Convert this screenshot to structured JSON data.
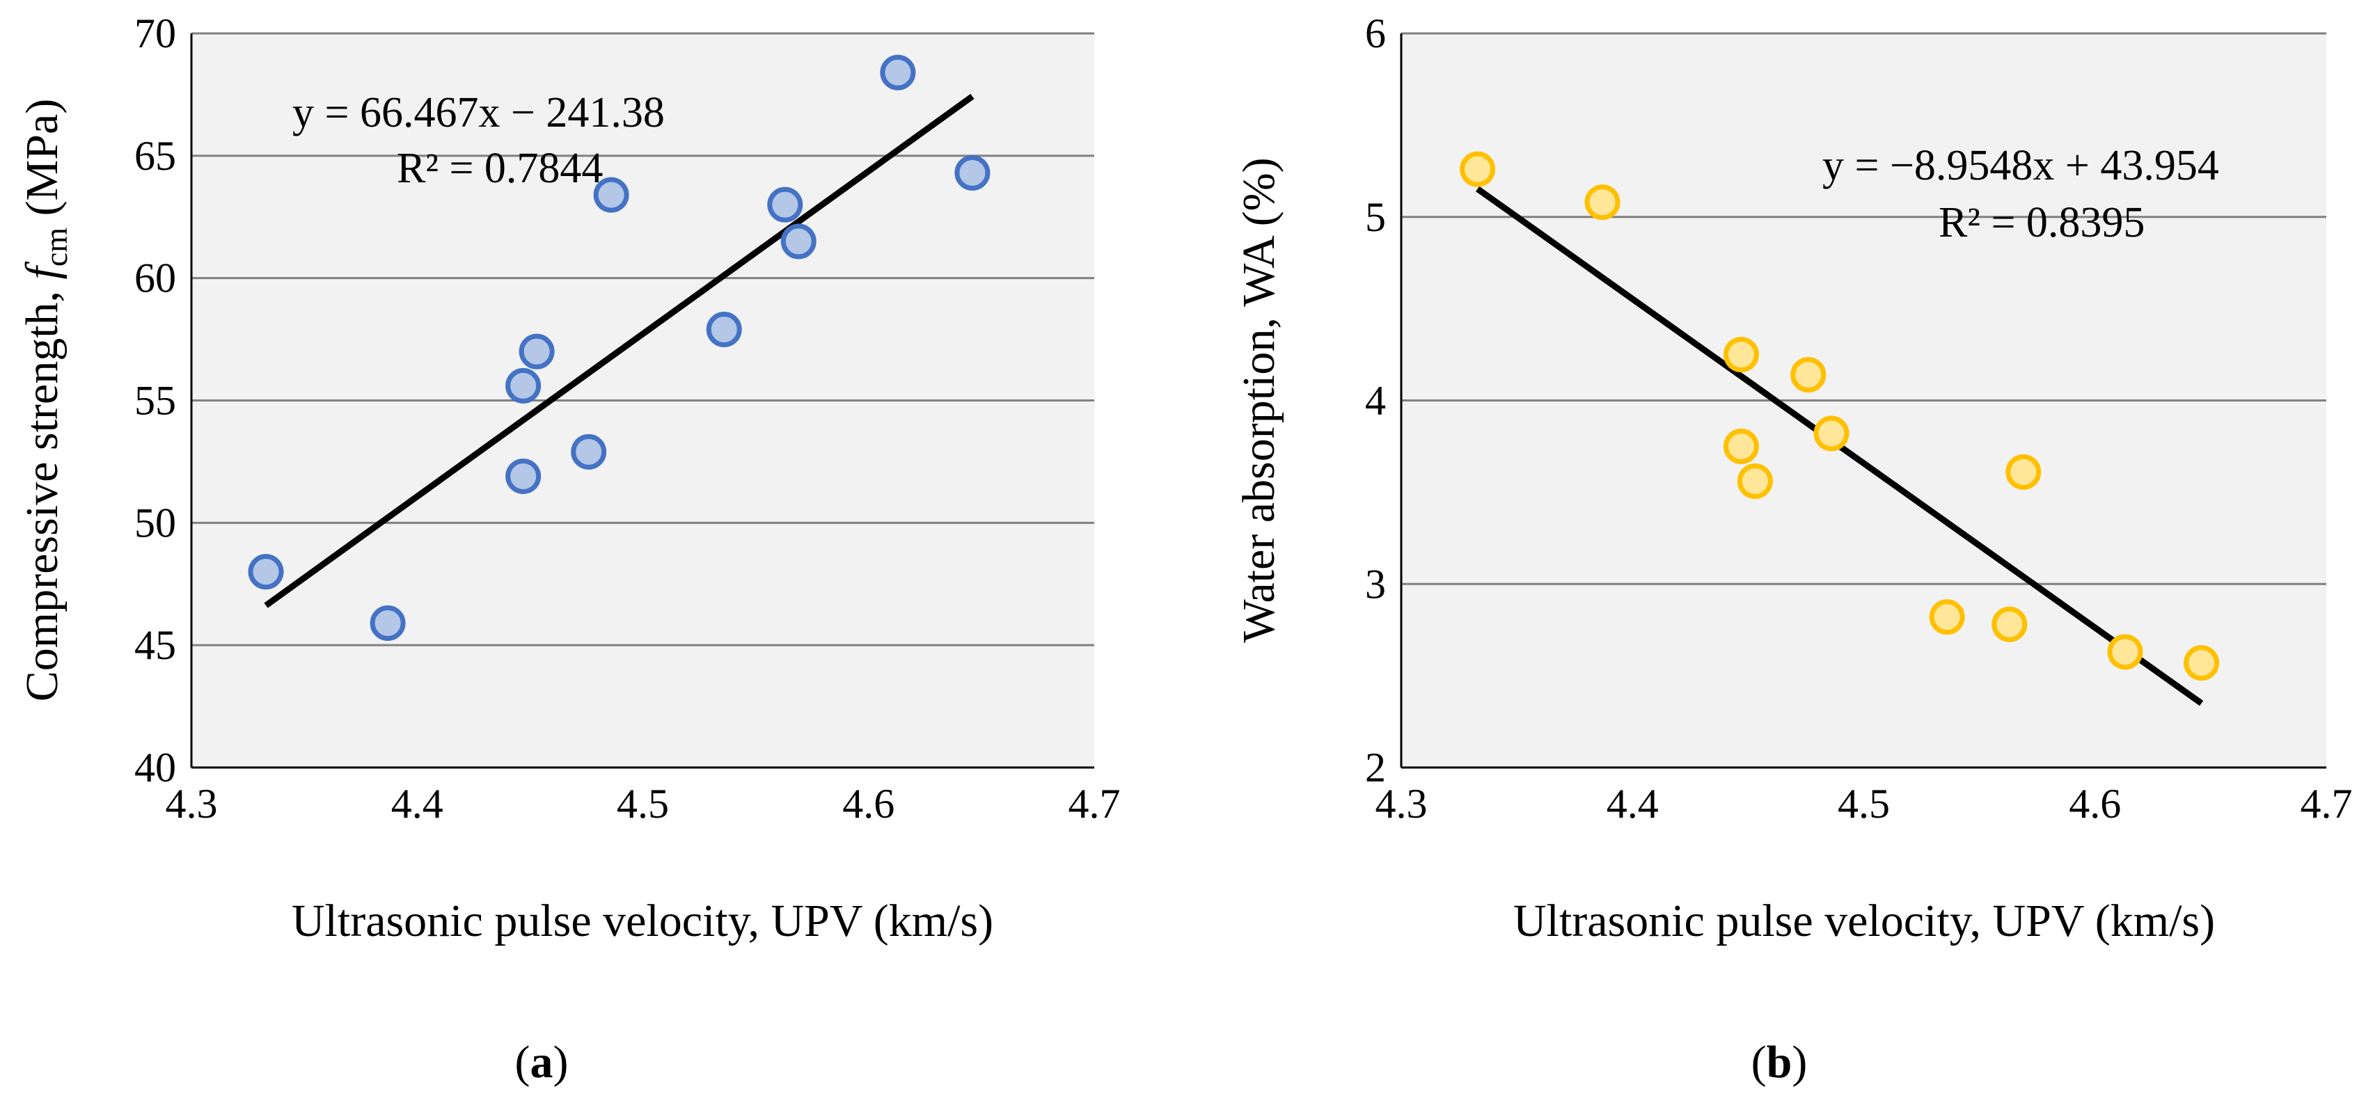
{
  "chart_data": [
    {
      "type": "scatter",
      "panel_label": "a",
      "xlabel": "Ultrasonic pulse velocity, UPV (km/s)",
      "ylabel_prefix": "Compressive strength, ",
      "ylabel_symbol": "f",
      "ylabel_subscript": "cm",
      "ylabel_suffix": " (MPa)",
      "xlim": [
        4.3,
        4.7
      ],
      "ylim": [
        40,
        70
      ],
      "xticks": [
        4.3,
        4.4,
        4.5,
        4.6,
        4.7
      ],
      "xtick_labels": [
        "4.3",
        "4.4",
        "4.5",
        "4.6",
        "4.7"
      ],
      "yticks": [
        40,
        45,
        50,
        55,
        60,
        65,
        70
      ],
      "ytick_labels": [
        "40",
        "45",
        "50",
        "55",
        "60",
        "65",
        "70"
      ],
      "grid": "horizontal",
      "plot_background": "#f2f2f2",
      "marker_fill": "#b4c7e7",
      "marker_edge": "#4472c4",
      "trendline_color": "#000000",
      "series": [
        {
          "name": "Compressive strength",
          "x": [
            4.333,
            4.387,
            4.447,
            4.447,
            4.453,
            4.476,
            4.486,
            4.536,
            4.563,
            4.569,
            4.613,
            4.646
          ],
          "y": [
            48.0,
            45.9,
            55.6,
            51.9,
            57.0,
            52.9,
            63.4,
            57.9,
            63.0,
            61.5,
            68.4,
            64.3
          ]
        }
      ],
      "trendline": {
        "slope": 66.467,
        "intercept": -241.38,
        "x_range": [
          4.333,
          4.646
        ],
        "equation": "y = 66.467x − 241.38",
        "r2": "R² = 0.7844"
      }
    },
    {
      "type": "scatter",
      "panel_label": "b",
      "xlabel": "Ultrasonic pulse velocity, UPV (km/s)",
      "ylabel": "Water absorption, WA (%)",
      "xlim": [
        4.3,
        4.7
      ],
      "ylim": [
        2,
        6
      ],
      "xticks": [
        4.3,
        4.4,
        4.5,
        4.6,
        4.7
      ],
      "xtick_labels": [
        "4.3",
        "4.4",
        "4.5",
        "4.6",
        "4.7"
      ],
      "yticks": [
        2,
        3,
        4,
        5,
        6
      ],
      "ytick_labels": [
        "2",
        "3",
        "4",
        "5",
        "6"
      ],
      "grid": "horizontal",
      "plot_background": "#f2f2f2",
      "marker_fill": "#ffe699",
      "marker_edge": "#ffc000",
      "trendline_color": "#000000",
      "series": [
        {
          "name": "Water absorption",
          "x": [
            4.333,
            4.387,
            4.447,
            4.447,
            4.453,
            4.476,
            4.486,
            4.536,
            4.563,
            4.569,
            4.613,
            4.646
          ],
          "y": [
            5.26,
            5.08,
            4.25,
            3.75,
            3.56,
            4.14,
            3.82,
            2.82,
            2.78,
            3.61,
            2.63,
            2.57
          ]
        }
      ],
      "trendline": {
        "slope": -8.9548,
        "intercept": 43.954,
        "x_range": [
          4.333,
          4.646
        ],
        "equation": "y = −8.9548x + 43.954",
        "r2": "R² = 0.8395"
      }
    }
  ]
}
